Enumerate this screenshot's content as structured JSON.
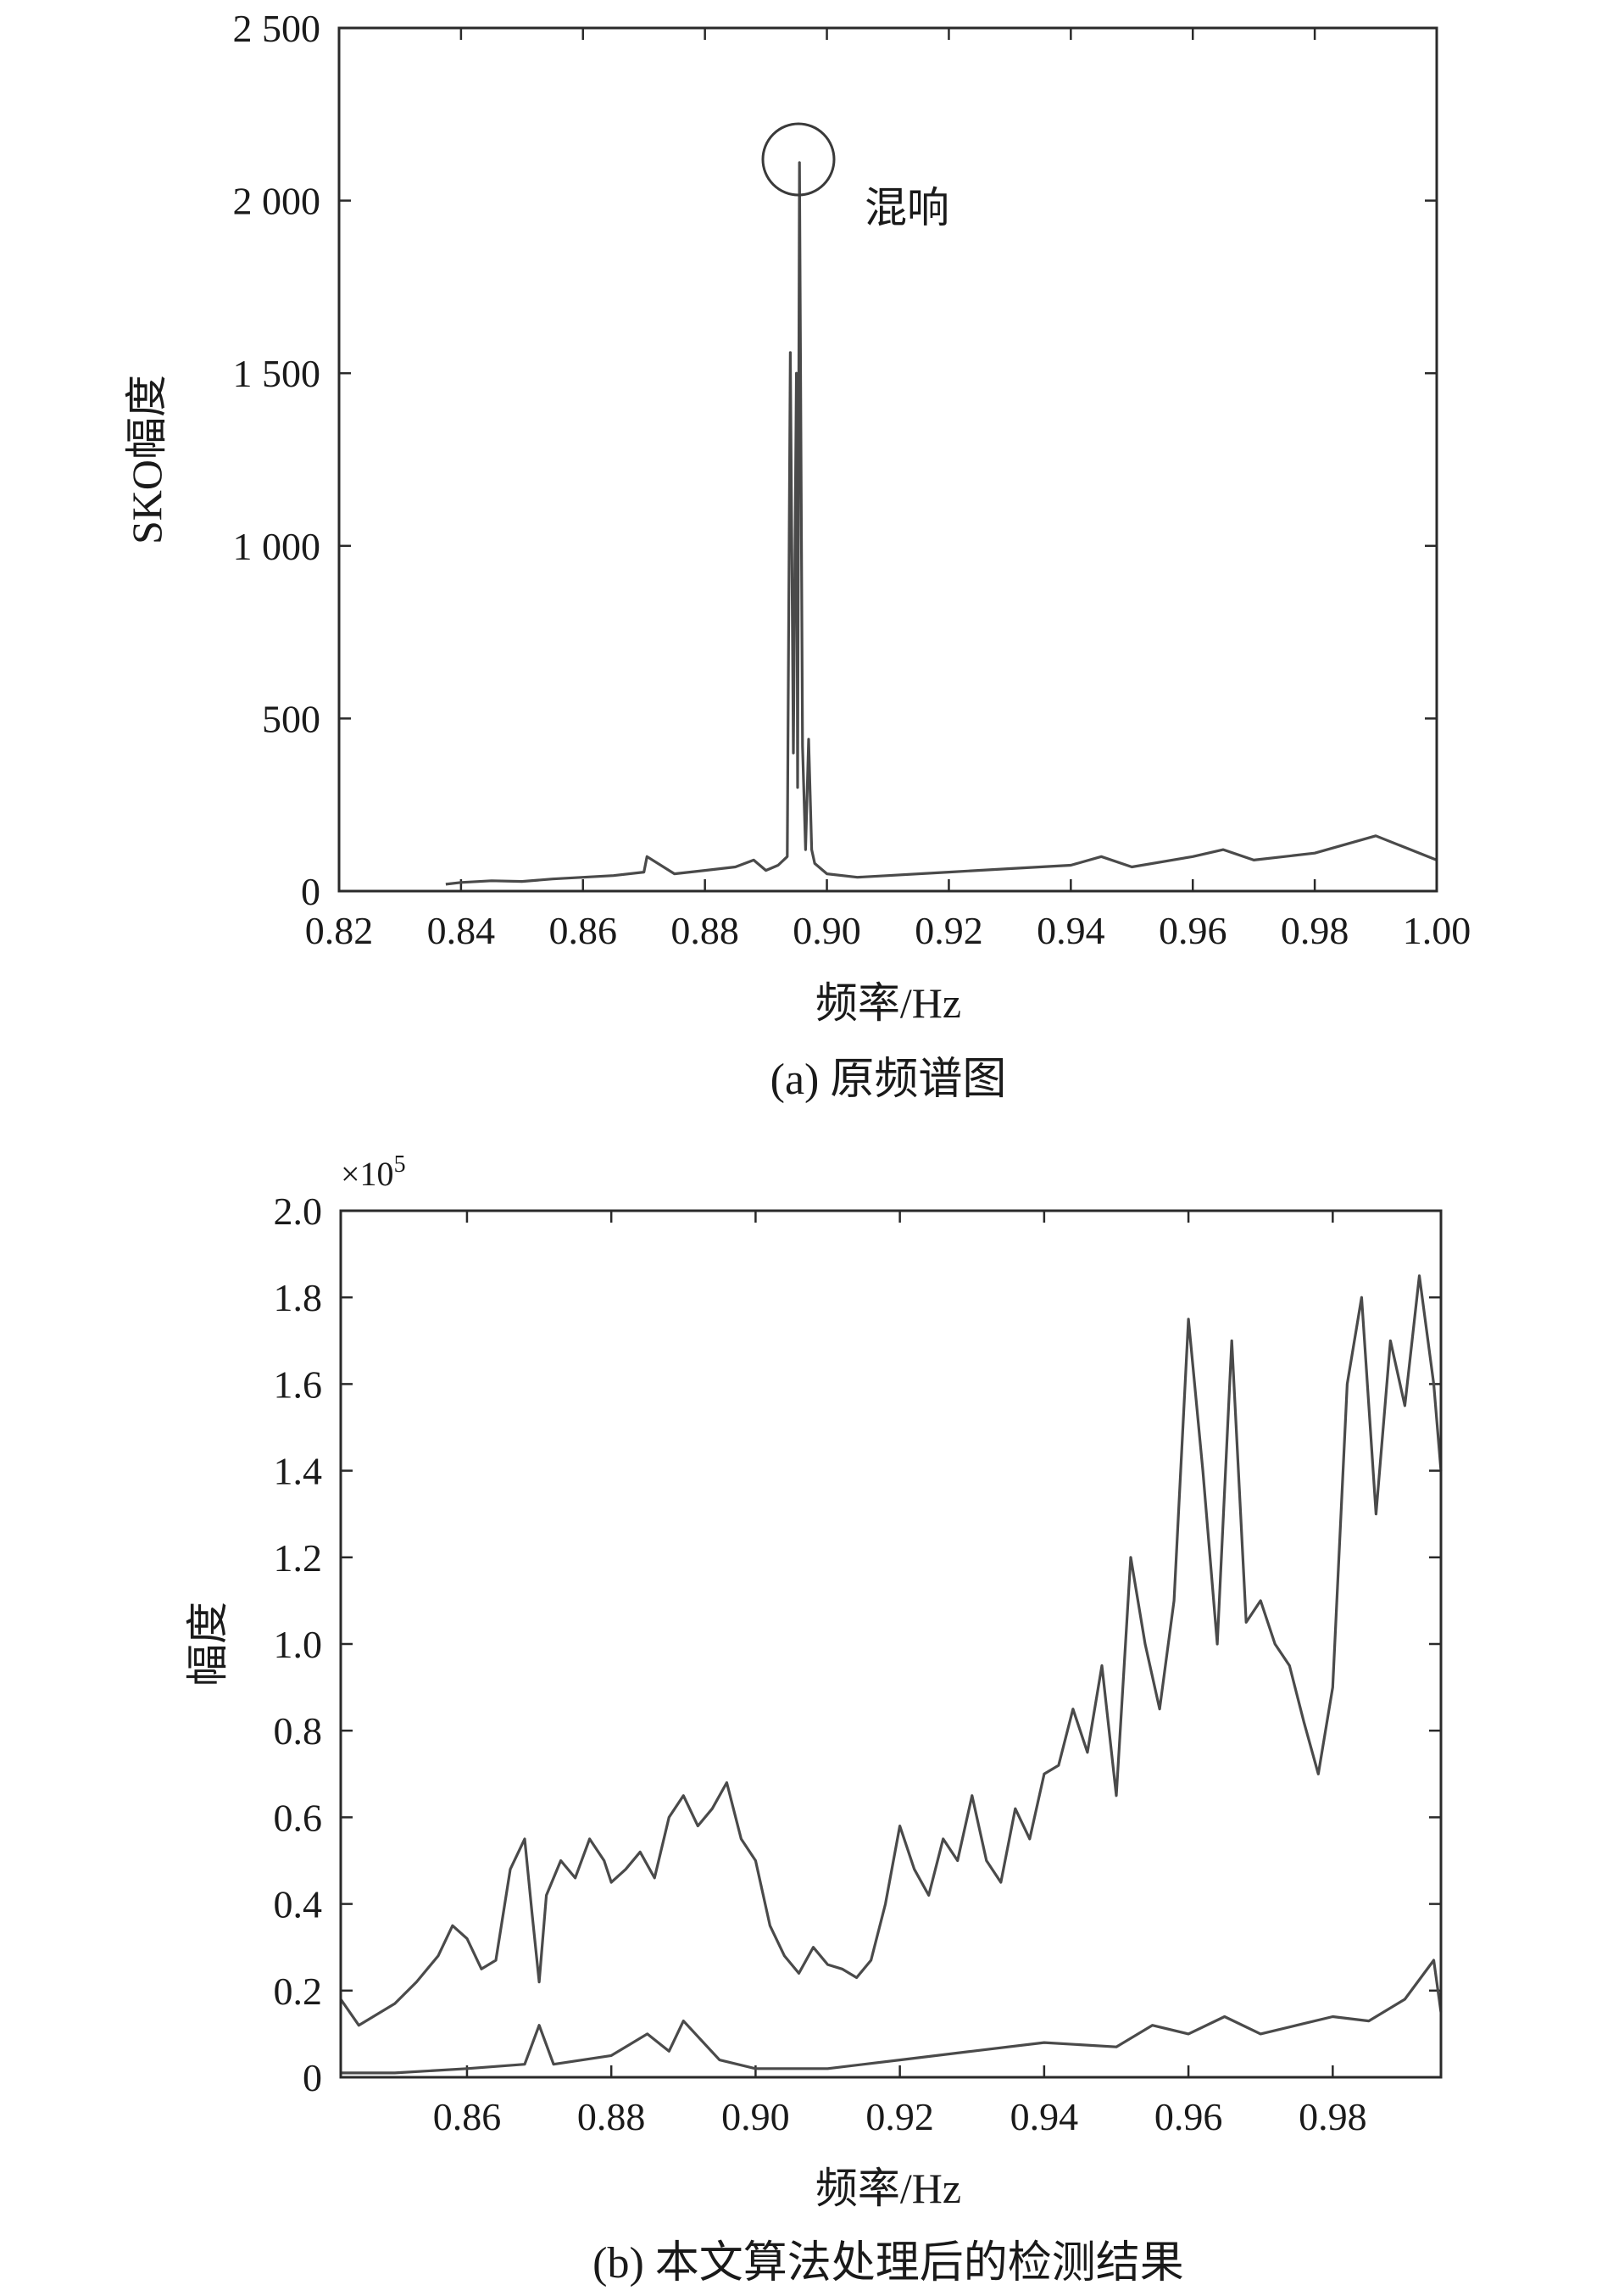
{
  "chart_data": [
    {
      "type": "line",
      "caption": "(a) 原频谱图",
      "xlabel": "频率/Hz",
      "ylabel": "SKO幅度",
      "xlim": [
        0.82,
        1.0
      ],
      "ylim": [
        0,
        2500
      ],
      "grid": false,
      "x_ticks": [
        0.82,
        0.84,
        0.86,
        0.88,
        0.9,
        0.92,
        0.94,
        0.96,
        0.98,
        1.0
      ],
      "x_tick_labels": [
        "0.82",
        "0.84",
        "0.86",
        "0.88",
        "0.90",
        "0.92",
        "0.94",
        "0.96",
        "0.98",
        "1.00"
      ],
      "y_ticks": [
        0,
        500,
        1000,
        1500,
        2000,
        2500
      ],
      "y_tick_labels": [
        "0",
        "500",
        "1 000",
        "1 500",
        "2 000",
        "2 500"
      ],
      "annotation": {
        "text": "混响",
        "x": 0.8955,
        "y": 2110
      },
      "series": [
        {
          "x": [
            0.8375,
            0.84,
            0.845,
            0.85,
            0.855,
            0.86,
            0.865,
            0.87,
            0.8705,
            0.875,
            0.88,
            0.885,
            0.888,
            0.89,
            0.892,
            0.8935,
            0.894,
            0.8945,
            0.895,
            0.8952,
            0.8955,
            0.896,
            0.8965,
            0.897,
            0.8975,
            0.898,
            0.9,
            0.905,
            0.91,
            0.92,
            0.93,
            0.94,
            0.945,
            0.95,
            0.96,
            0.965,
            0.97,
            0.98,
            0.99,
            1.0
          ],
          "values": [
            20,
            25,
            30,
            28,
            35,
            40,
            45,
            55,
            100,
            50,
            60,
            70,
            90,
            60,
            75,
            100,
            1560,
            400,
            1500,
            300,
            2110,
            420,
            120,
            440,
            120,
            80,
            50,
            40,
            45,
            55,
            65,
            75,
            100,
            70,
            100,
            120,
            90,
            110,
            160,
            90
          ]
        }
      ]
    },
    {
      "type": "line",
      "caption": "(b) 本文算法处理后的检测结果",
      "xlabel": "频率/Hz",
      "ylabel": "幅度",
      "exponent_label": "×10",
      "exponent_power": "5",
      "xlim": [
        0.8425,
        0.995
      ],
      "ylim": [
        0,
        2.0
      ],
      "grid": false,
      "x_ticks": [
        0.86,
        0.88,
        0.9,
        0.92,
        0.94,
        0.96,
        0.98
      ],
      "x_tick_labels": [
        "0.86",
        "0.88",
        "0.90",
        "0.92",
        "0.94",
        "0.96",
        "0.98"
      ],
      "y_ticks": [
        0,
        0.2,
        0.4,
        0.6,
        0.8,
        1.0,
        1.2,
        1.4,
        1.6,
        1.8,
        2.0
      ],
      "y_tick_labels": [
        "0",
        "0.2",
        "0.4",
        "0.6",
        "0.8",
        "1.0",
        "1.2",
        "1.4",
        "1.6",
        "1.8",
        "2.0"
      ],
      "series": [
        {
          "x": [
            0.8425,
            0.845,
            0.847,
            0.85,
            0.853,
            0.856,
            0.858,
            0.86,
            0.862,
            0.864,
            0.866,
            0.868,
            0.869,
            0.87,
            0.871,
            0.873,
            0.875,
            0.877,
            0.879,
            0.88,
            0.882,
            0.884,
            0.886,
            0.888,
            0.89,
            0.892,
            0.894,
            0.896,
            0.898,
            0.9,
            0.902,
            0.904,
            0.906,
            0.908,
            0.91,
            0.912,
            0.914,
            0.916,
            0.918,
            0.92,
            0.922,
            0.924,
            0.926,
            0.928,
            0.93,
            0.932,
            0.934,
            0.936,
            0.938,
            0.94,
            0.942,
            0.944,
            0.946,
            0.948,
            0.95,
            0.952,
            0.954,
            0.956,
            0.958,
            0.96,
            0.962,
            0.964,
            0.966,
            0.968,
            0.97,
            0.972,
            0.974,
            0.976,
            0.978,
            0.98,
            0.982,
            0.984,
            0.986,
            0.988,
            0.99,
            0.992,
            0.994,
            0.995
          ],
          "values": [
            0.18,
            0.12,
            0.14,
            0.17,
            0.22,
            0.28,
            0.35,
            0.32,
            0.25,
            0.27,
            0.48,
            0.55,
            0.38,
            0.22,
            0.42,
            0.5,
            0.46,
            0.55,
            0.5,
            0.45,
            0.48,
            0.52,
            0.46,
            0.6,
            0.65,
            0.58,
            0.62,
            0.68,
            0.55,
            0.5,
            0.35,
            0.28,
            0.24,
            0.3,
            0.26,
            0.25,
            0.23,
            0.27,
            0.4,
            0.58,
            0.48,
            0.42,
            0.55,
            0.5,
            0.65,
            0.5,
            0.45,
            0.62,
            0.55,
            0.7,
            0.72,
            0.85,
            0.75,
            0.95,
            0.65,
            1.2,
            1.0,
            0.85,
            1.1,
            1.75,
            1.4,
            1.0,
            1.7,
            1.05,
            1.1,
            1.0,
            0.95,
            0.82,
            0.7,
            0.9,
            1.6,
            1.8,
            1.3,
            1.7,
            1.55,
            1.85,
            1.6,
            1.4
          ]
        },
        {
          "x": [
            0.8425,
            0.85,
            0.86,
            0.868,
            0.87,
            0.872,
            0.88,
            0.885,
            0.888,
            0.89,
            0.895,
            0.9,
            0.91,
            0.92,
            0.93,
            0.94,
            0.95,
            0.955,
            0.96,
            0.965,
            0.97,
            0.975,
            0.98,
            0.985,
            0.99,
            0.994,
            0.995
          ],
          "values": [
            0.01,
            0.01,
            0.02,
            0.03,
            0.12,
            0.03,
            0.05,
            0.1,
            0.06,
            0.13,
            0.04,
            0.02,
            0.02,
            0.04,
            0.06,
            0.08,
            0.07,
            0.12,
            0.1,
            0.14,
            0.1,
            0.12,
            0.14,
            0.13,
            0.18,
            0.27,
            0.15
          ]
        }
      ]
    }
  ]
}
